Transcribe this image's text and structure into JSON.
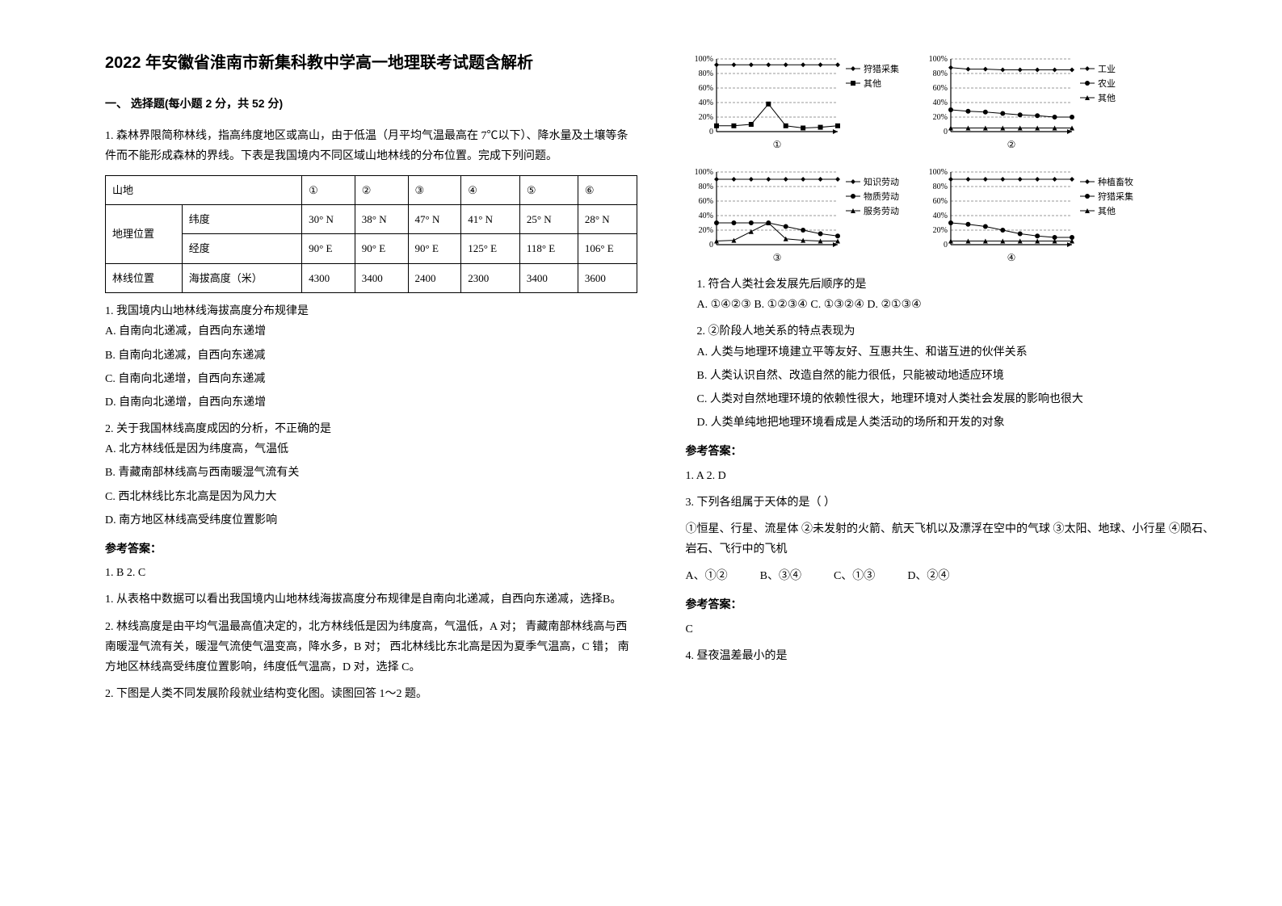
{
  "title": "2022 年安徽省淮南市新集科教中学高一地理联考试题含解析",
  "section1": "一、 选择题(每小题 2 分，共 52 分)",
  "q1": {
    "stem": "1. 森林界限简称林线，指高纬度地区或高山，由于低温（月平均气温最高在 7℃以下）、降水量及土壤等条件而不能形成森林的界线。下表是我国境内不同区域山地林线的分布位置。完成下列问题。",
    "table": {
      "headers": [
        "山地",
        "",
        "①",
        "②",
        "③",
        "④",
        "⑤",
        "⑥"
      ],
      "row1": [
        "地理位置",
        "纬度",
        "30° N",
        "38° N",
        "47° N",
        "41° N",
        "25° N",
        "28° N"
      ],
      "row2": [
        "经度",
        "90° E",
        "90° E",
        "90° E",
        "125° E",
        "118° E",
        "106° E"
      ],
      "row3": [
        "林线位置",
        "海拔高度（米）",
        "4300",
        "3400",
        "2400",
        "2300",
        "3400",
        "3600"
      ]
    },
    "sub1": "1.  我国境内山地林线海拔高度分布规律是",
    "optA": "A.  自南向北递减，自西向东递增",
    "optB": "B.  自南向北递减，自西向东递减",
    "optC": "C.  自南向北递增，自西向东递减",
    "optD": "D.  自南向北递增，自西向东递增",
    "sub2": "2.  关于我国林线高度成因的分析，不正确的是",
    "opt2A": "A.  北方林线低是因为纬度高，气温低",
    "opt2B": "B.  青藏南部林线高与西南暖湿气流有关",
    "opt2C": "C.  西北林线比东北高是因为风力大",
    "opt2D": "D.  南方地区林线高受纬度位置影响",
    "answerLabel": "参考答案：",
    "answerLine": "1. B         2. C",
    "exp1": "1. 从表格中数据可以看出我国境内山地林线海拔高度分布规律是自南向北递减，自西向东递减，选择B。",
    "exp2": "2. 林线高度是由平均气温最高值决定的，北方林线低是因为纬度高，气温低，A 对； 青藏南部林线高与西南暖湿气流有关，暖湿气流使气温变高，降水多，B 对； 西北林线比东北高是因为夏季气温高，C 错； 南方地区林线高受纬度位置影响，纬度低气温高，D 对，选择 C。"
  },
  "q2": {
    "stem": "2. 下图是人类不同发展阶段就业结构变化图。读图回答 1～2 题。",
    "charts": [
      {
        "num": "①",
        "series": [
          {
            "label": "狩猎采集",
            "marker": "◆",
            "color": "#000",
            "y": [
              92,
              92,
              92,
              92,
              92,
              92,
              92,
              92
            ]
          },
          {
            "label": "其他",
            "marker": "■",
            "color": "#000",
            "y": [
              8,
              8,
              10,
              38,
              8,
              5,
              6,
              8
            ]
          }
        ]
      },
      {
        "num": "②",
        "series": [
          {
            "label": "工业",
            "marker": "◆",
            "color": "#000",
            "y": [
              88,
              86,
              86,
              85,
              85,
              85,
              85,
              85
            ]
          },
          {
            "label": "农业",
            "marker": "●",
            "color": "#000",
            "y": [
              30,
              28,
              27,
              25,
              23,
              22,
              20,
              20
            ]
          },
          {
            "label": "其他",
            "marker": "▲",
            "color": "#000",
            "y": [
              5,
              5,
              5,
              5,
              5,
              5,
              5,
              5
            ]
          }
        ]
      },
      {
        "num": "③",
        "series": [
          {
            "label": "知识劳动",
            "marker": "◆",
            "color": "#000",
            "y": [
              90,
              90,
              90,
              90,
              90,
              90,
              90,
              90
            ]
          },
          {
            "label": "物质劳动",
            "marker": "●",
            "color": "#000",
            "y": [
              30,
              30,
              30,
              30,
              25,
              20,
              15,
              12
            ]
          },
          {
            "label": "服务劳动",
            "marker": "▲",
            "color": "#000",
            "y": [
              5,
              6,
              18,
              30,
              8,
              6,
              5,
              5
            ]
          }
        ]
      },
      {
        "num": "④",
        "series": [
          {
            "label": "种植畜牧",
            "marker": "◆",
            "color": "#000",
            "y": [
              90,
              90,
              90,
              90,
              90,
              90,
              90,
              90
            ]
          },
          {
            "label": "狩猎采集",
            "marker": "●",
            "color": "#000",
            "y": [
              30,
              28,
              25,
              20,
              15,
              12,
              10,
              10
            ]
          },
          {
            "label": "其他",
            "marker": "▲",
            "color": "#000",
            "y": [
              5,
              5,
              5,
              5,
              5,
              5,
              5,
              5
            ]
          }
        ]
      }
    ],
    "yticks": [
      "100%",
      "80%",
      "60%",
      "40%",
      "20%",
      "0"
    ],
    "sub1": "1. 符合人类社会发展先后顺序的是",
    "opts1": "A. ①④②③   B. ①②③④   C. ①③②④   D. ②①③④",
    "sub2": "2. ②阶段人地关系的特点表现为",
    "opt2A": "A. 人类与地理环境建立平等友好、互惠共生、和谐互进的伙伴关系",
    "opt2B": "B. 人类认识自然、改造自然的能力很低，只能被动地适应环境",
    "opt2C": "C. 人类对自然地理环境的依赖性很大，地理环境对人类社会发展的影响也很大",
    "opt2D": "D. 人类单纯地把地理环境看成是人类活动的场所和开发的对象",
    "answerLabel": "参考答案：",
    "answers": "1. A  2. D"
  },
  "q3": {
    "stem": "3. 下列各组属于天体的是（      ）",
    "line1": "①恒星、行星、流星体 ②未发射的火箭、航天飞机以及漂浮在空中的气球 ③太阳、地球、小行星 ④陨石、岩石、飞行中的飞机",
    "optA": "A、①②",
    "optB": "B、③④",
    "optC": "C、①③",
    "optD": "D、②④",
    "answerLabel": "参考答案：",
    "answer": "C"
  },
  "q4": {
    "stem": "4. 昼夜温差最小的是"
  },
  "chartStyle": {
    "axis_color": "#000",
    "grid_dash": "3,2",
    "grid_color": "#333",
    "font_size": 10,
    "marker_size": 3,
    "ytick_positions": [
      0,
      20,
      40,
      60,
      80,
      100
    ],
    "x_points": 8
  }
}
